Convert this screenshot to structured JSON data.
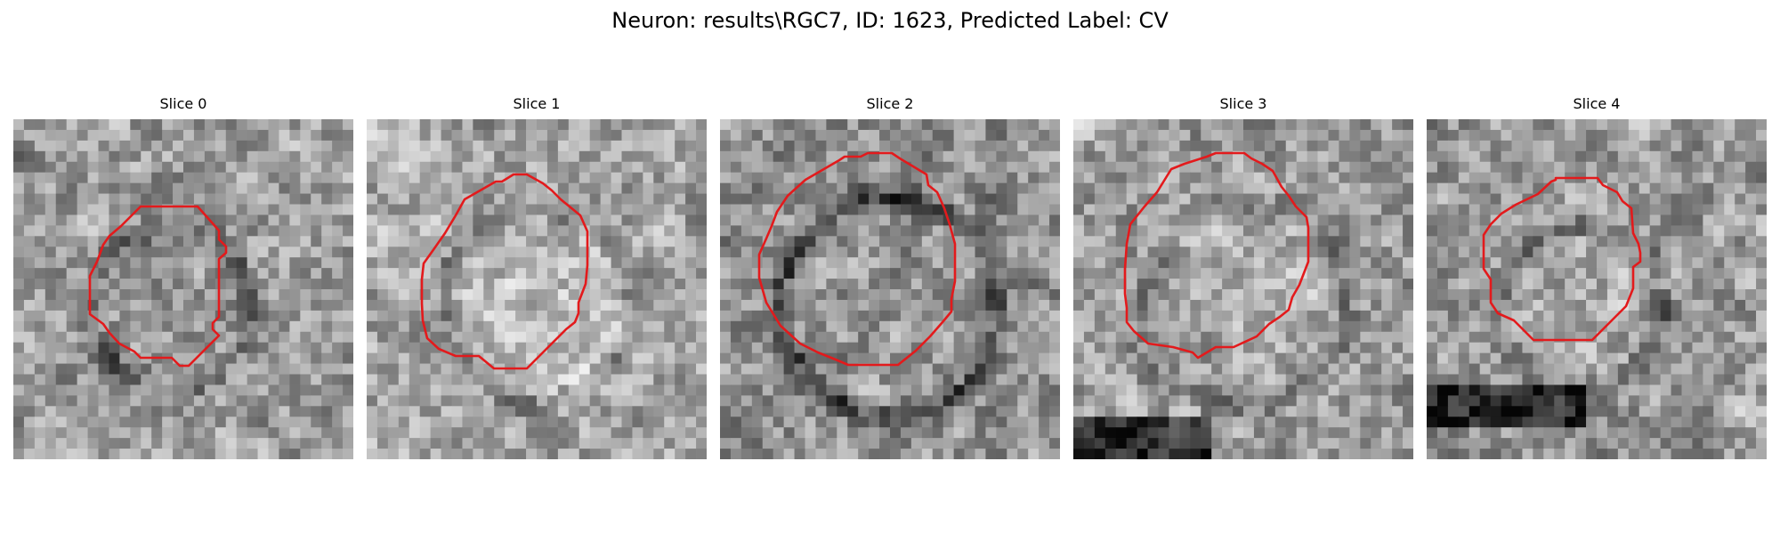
{
  "figure": {
    "title": "Neuron: results\\RGC7, ID: 1623, Predicted Label: CV"
  },
  "panels": [
    {
      "title": "Slice 0"
    },
    {
      "title": "Slice 1"
    },
    {
      "title": "Slice 2"
    },
    {
      "title": "Slice 3"
    },
    {
      "title": "Slice 4"
    }
  ],
  "colors": {
    "contour": "#e31a1c",
    "background": "#ffffff"
  }
}
